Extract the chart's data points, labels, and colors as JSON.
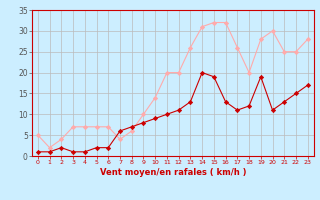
{
  "x": [
    0,
    1,
    2,
    3,
    4,
    5,
    6,
    7,
    8,
    9,
    10,
    11,
    12,
    13,
    14,
    15,
    16,
    17,
    18,
    19,
    20,
    21,
    22,
    23
  ],
  "vent_moyen": [
    1,
    1,
    2,
    1,
    1,
    2,
    2,
    6,
    7,
    8,
    9,
    10,
    11,
    13,
    20,
    19,
    13,
    11,
    12,
    19,
    11,
    13,
    15,
    17
  ],
  "en_rafales": [
    5,
    2,
    4,
    7,
    7,
    7,
    7,
    4,
    6,
    10,
    14,
    20,
    20,
    26,
    31,
    32,
    32,
    26,
    20,
    28,
    30,
    25,
    25,
    28
  ],
  "color_moyen": "#cc0000",
  "color_rafales": "#ffaaaa",
  "bg_color": "#cceeff",
  "grid_color": "#bbbbbb",
  "xlabel": "Vent moyen/en rafales ( km/h )",
  "xlabel_color": "#cc0000",
  "ylim": [
    0,
    35
  ],
  "yticks": [
    0,
    5,
    10,
    15,
    20,
    25,
    30,
    35
  ],
  "xlim": [
    -0.5,
    23.5
  ],
  "xticks": [
    0,
    1,
    2,
    3,
    4,
    5,
    6,
    7,
    8,
    9,
    10,
    11,
    12,
    13,
    14,
    15,
    16,
    17,
    18,
    19,
    20,
    21,
    22,
    23
  ]
}
